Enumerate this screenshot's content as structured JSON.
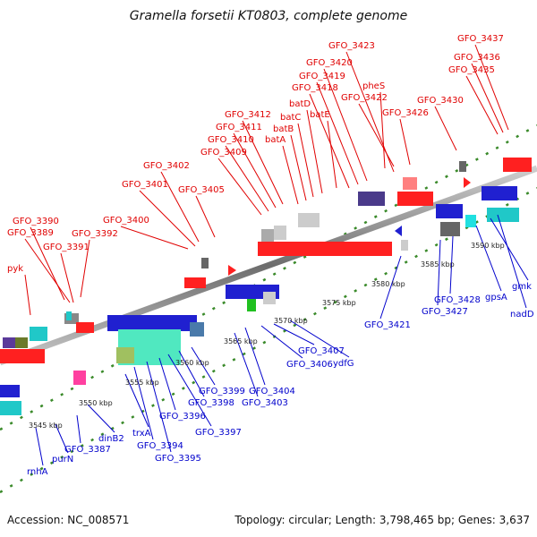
{
  "title": "Gramella forsetii KT0803, complete genome",
  "footer": {
    "accession": "Accession: NC_008571",
    "topology": "Topology: circular; Length: 3,798,465 bp; Genes: 3,637"
  },
  "colors": {
    "forward_label": "#e00000",
    "reverse_label": "#0000cc",
    "backbone": "#888888",
    "ruler": "#3a8a2a"
  },
  "scale_labels": [
    "3545 kbp",
    "3550 kbp",
    "3555 kbp",
    "3560 kbp",
    "3565 kbp",
    "3570 kbp",
    "3575 kbp",
    "3580 kbp",
    "3585 kbp",
    "3590 kbp"
  ],
  "forward_labels": [
    "pyk",
    "GFO_3390",
    "GFO_3389",
    "GFO_3391",
    "GFO_3392",
    "GFO_3400",
    "GFO_3401",
    "GFO_3402",
    "GFO_3405",
    "GFO_3409",
    "GFO_3410",
    "GFO_3411",
    "GFO_3412",
    "batA",
    "batB",
    "batC",
    "batD",
    "batE",
    "GFO_3418",
    "GFO_3419",
    "GFO_3420",
    "GFO_3423",
    "pheS",
    "GFO_3422",
    "GFO_3426",
    "GFO_3430",
    "GFO_3435",
    "GFO_3436",
    "GFO_3437"
  ],
  "reverse_labels": [
    "rnhA",
    "purN",
    "GFO_3387",
    "dinB2",
    "trxA",
    "GFO_3394",
    "GFO_3395",
    "GFO_3396",
    "GFO_3397",
    "GFO_3398",
    "GFO_3399",
    "GFO_3403",
    "GFO_3404",
    "GFO_3406",
    "GFO_3407",
    "ydfG",
    "GFO_3421",
    "GFO_3427",
    "GFO_3428",
    "gpsA",
    "gmk",
    "nadD"
  ]
}
